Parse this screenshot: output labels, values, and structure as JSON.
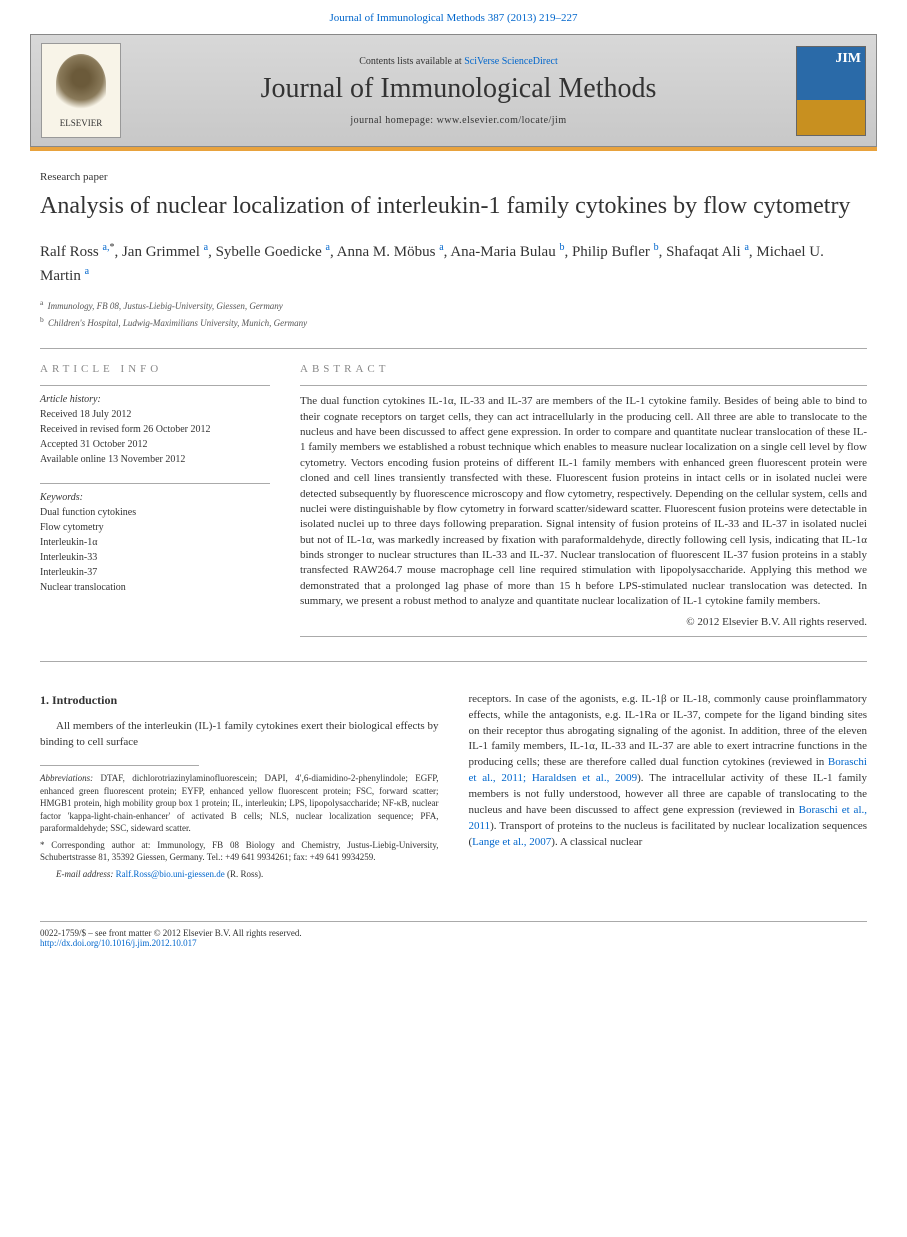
{
  "header": {
    "citation": "Journal of Immunological Methods 387 (2013) 219–227"
  },
  "banner": {
    "contents_prefix": "Contents lists available at ",
    "contents_link": "SciVerse ScienceDirect",
    "journal_name": "Journal of Immunological Methods",
    "homepage_prefix": "journal homepage: ",
    "homepage_url": "www.elsevier.com/locate/jim",
    "publisher_label": "ELSEVIER",
    "cover_label": "JIM"
  },
  "article": {
    "type": "Research paper",
    "title": "Analysis of nuclear localization of interleukin-1 family cytokines by flow cytometry"
  },
  "authors": [
    {
      "name": "Ralf Ross",
      "aff": "a,",
      "star": "*"
    },
    {
      "name": "Jan Grimmel",
      "aff": "a"
    },
    {
      "name": "Sybelle Goedicke",
      "aff": "a"
    },
    {
      "name": "Anna M. Möbus",
      "aff": "a"
    },
    {
      "name": "Ana-Maria Bulau",
      "aff": "b"
    },
    {
      "name": "Philip Bufler",
      "aff": "b"
    },
    {
      "name": "Shafaqat Ali",
      "aff": "a"
    },
    {
      "name": "Michael U. Martin",
      "aff": "a"
    }
  ],
  "affiliations": [
    {
      "sup": "a",
      "text": "Immunology, FB 08, Justus-Liebig-University, Giessen, Germany"
    },
    {
      "sup": "b",
      "text": "Children's Hospital, Ludwig-Maximilians University, Munich, Germany"
    }
  ],
  "info": {
    "heading": "ARTICLE INFO",
    "history_label": "Article history:",
    "history": "Received 18 July 2012\nReceived in revised form 26 October 2012\nAccepted 31 October 2012\nAvailable online 13 November 2012",
    "keywords_label": "Keywords:",
    "keywords": "Dual function cytokines\nFlow cytometry\nInterleukin-1α\nInterleukin-33\nInterleukin-37\nNuclear translocation"
  },
  "abstract": {
    "heading": "ABSTRACT",
    "text": "The dual function cytokines IL-1α, IL-33 and IL-37 are members of the IL-1 cytokine family. Besides of being able to bind to their cognate receptors on target cells, they can act intracellularly in the producing cell. All three are able to translocate to the nucleus and have been discussed to affect gene expression. In order to compare and quantitate nuclear translocation of these IL-1 family members we established a robust technique which enables to measure nuclear localization on a single cell level by flow cytometry. Vectors encoding fusion proteins of different IL-1 family members with enhanced green fluorescent protein were cloned and cell lines transiently transfected with these. Fluorescent fusion proteins in intact cells or in isolated nuclei were detected subsequently by fluorescence microscopy and flow cytometry, respectively. Depending on the cellular system, cells and nuclei were distinguishable by flow cytometry in forward scatter/sideward scatter. Fluorescent fusion proteins were detectable in isolated nuclei up to three days following preparation. Signal intensity of fusion proteins of IL-33 and IL-37 in isolated nuclei but not of IL-1α, was markedly increased by fixation with paraformaldehyde, directly following cell lysis, indicating that IL-1α binds stronger to nuclear structures than IL-33 and IL-37. Nuclear translocation of fluorescent IL-37 fusion proteins in a stably transfected RAW264.7 mouse macrophage cell line required stimulation with lipopolysaccharide. Applying this method we demonstrated that a prolonged lag phase of more than 15 h before LPS-stimulated nuclear translocation was detected. In summary, we present a robust method to analyze and quantitate nuclear localization of IL-1 cytokine family members.",
    "copyright": "© 2012 Elsevier B.V. All rights reserved."
  },
  "body": {
    "section_heading": "1. Introduction",
    "col1_para": "All members of the interleukin (IL)-1 family cytokines exert their biological effects by binding to cell surface",
    "col2_para": "receptors. In case of the agonists, e.g. IL-1β or IL-18, commonly cause proinflammatory effects, while the antagonists, e.g. IL-1Ra or IL-37, compete for the ligand binding sites on their receptor thus abrogating signaling of the agonist. In addition, three of the eleven IL-1 family members, IL-1α, IL-33 and IL-37 are able to exert intracrine functions in the producing cells; these are therefore called dual function cytokines (reviewed in ",
    "ref1": "Boraschi et al., 2011; Haraldsen et al., 2009",
    "col2_para2": "). The intracellular activity of these IL-1 family members is not fully understood, however all three are capable of translocating to the nucleus and have been discussed to affect gene expression (reviewed in ",
    "ref2": "Boraschi et al., 2011",
    "col2_para3": "). Transport of proteins to the nucleus is facilitated by nuclear localization sequences (",
    "ref3": "Lange et al., 2007",
    "col2_para4": "). A classical nuclear"
  },
  "footnotes": {
    "abbrev_label": "Abbreviations:",
    "abbrev_text": " DTAF, dichlorotriazinylaminofluorescein; DAPI, 4′,6-diamidino-2-phenylindole; EGFP, enhanced green fluorescent protein; EYFP, enhanced yellow fluorescent protein; FSC, forward scatter; HMGB1 protein, high mobility group box 1 protein; IL, interleukin; LPS, lipopolysaccharide; NF-κB, nuclear factor 'kappa-light-chain-enhancer' of activated B cells; NLS, nuclear localization sequence; PFA, paraformaldehyde; SSC, sideward scatter.",
    "corr_label": "* Corresponding author at:",
    "corr_text": " Immunology, FB 08 Biology and Chemistry, Justus-Liebig-University, Schubertstrasse 81, 35392 Giessen, Germany. Tel.: +49 641 9934261; fax: +49 641 9934259.",
    "email_label": "E-mail address:",
    "email": "Ralf.Ross@bio.uni-giessen.de",
    "email_suffix": " (R. Ross)."
  },
  "bottom": {
    "issn": "0022-1759/$ – see front matter © 2012 Elsevier B.V. All rights reserved.",
    "doi": "http://dx.doi.org/10.1016/j.jim.2012.10.017"
  },
  "colors": {
    "link": "#0066cc",
    "orange_bar": "#e8a23d",
    "banner_bg": "#d0d0d0"
  }
}
